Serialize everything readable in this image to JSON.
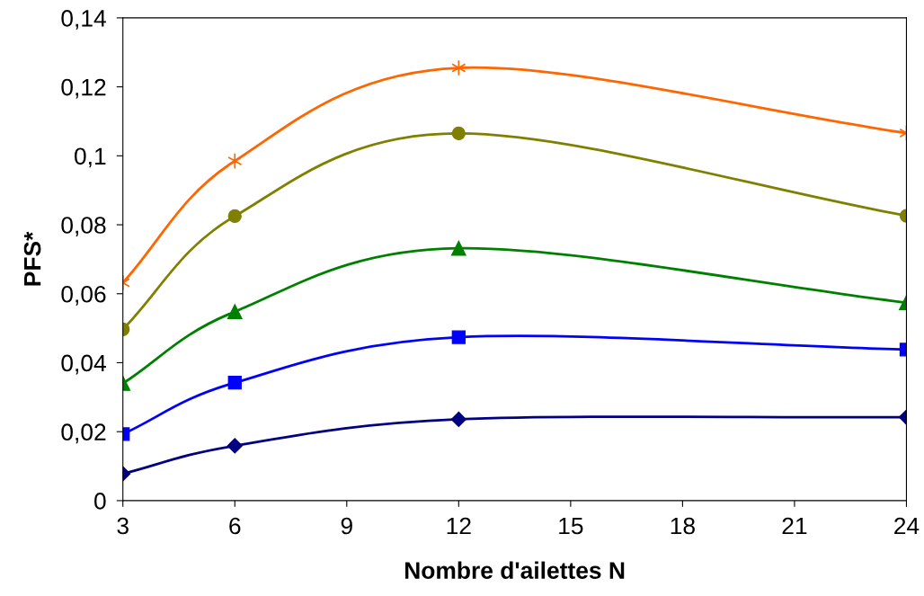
{
  "chart_data": {
    "type": "line",
    "xlabel": "Nombre d'ailettes N",
    "ylabel": "PFS*",
    "x": [
      3,
      6,
      12,
      24
    ],
    "series": [
      {
        "color": "#000080",
        "marker": "diamond",
        "values": [
          0.0078,
          0.0159,
          0.0236,
          0.0242
        ]
      },
      {
        "color": "#0000ff",
        "marker": "square",
        "values": [
          0.0193,
          0.0342,
          0.0474,
          0.0438
        ]
      },
      {
        "color": "#008000",
        "marker": "triangle",
        "values": [
          0.034,
          0.0548,
          0.0732,
          0.0574
        ]
      },
      {
        "color": "#808000",
        "marker": "circle",
        "values": [
          0.0497,
          0.0825,
          0.1065,
          0.0826
        ]
      },
      {
        "color": "#ff6600",
        "marker": "cross",
        "values": [
          0.0632,
          0.0985,
          0.1255,
          0.1066
        ]
      }
    ],
    "xlim": [
      3,
      24
    ],
    "xticks": [
      3,
      6,
      9,
      12,
      15,
      18,
      21,
      24
    ],
    "ylim": [
      0,
      0.14
    ],
    "yticks": [
      {
        "value": 0,
        "label": "0"
      },
      {
        "value": 0.02,
        "label": "0,02"
      },
      {
        "value": 0.04,
        "label": "0,04"
      },
      {
        "value": 0.06,
        "label": "0,06"
      },
      {
        "value": 0.08,
        "label": "0,08"
      },
      {
        "value": 0.1,
        "label": "0,1"
      },
      {
        "value": 0.12,
        "label": "0,12"
      },
      {
        "value": 0.14,
        "label": "0,14"
      }
    ],
    "grid": false,
    "legend": false,
    "line_style": "solid"
  }
}
